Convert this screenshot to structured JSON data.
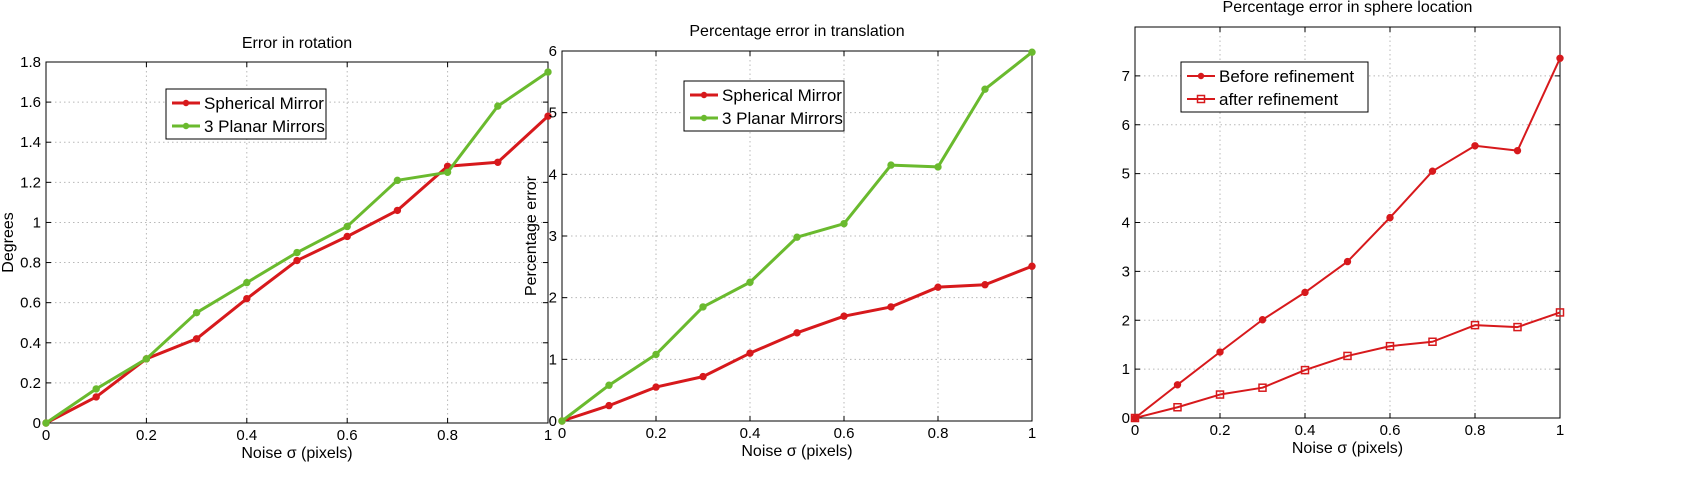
{
  "chart_data": [
    {
      "type": "line",
      "title": "Error in rotation",
      "xlabel": "Noise σ (pixels)",
      "ylabel": "Degrees",
      "xlim": [
        0,
        1
      ],
      "ylim": [
        0,
        1.8
      ],
      "xticks": [
        0,
        0.2,
        0.4,
        0.6,
        0.8,
        1
      ],
      "xtick_labels": [
        "0",
        "0.2",
        "0.4",
        "0.6",
        "0.8",
        "1"
      ],
      "yticks": [
        0,
        0.2,
        0.4,
        0.6,
        0.8,
        1,
        1.2,
        1.4,
        1.6,
        1.8
      ],
      "ytick_labels": [
        "0",
        "0.2",
        "0.4",
        "0.6",
        "0.8",
        "1",
        "1.2",
        "1.4",
        "1.6",
        "1.8"
      ],
      "grid": true,
      "legend_position": "top-center",
      "x": [
        0,
        0.1,
        0.2,
        0.3,
        0.4,
        0.5,
        0.6,
        0.7,
        0.8,
        0.9,
        1
      ],
      "series": [
        {
          "name": "Spherical Mirror",
          "color": "#d7191c",
          "marker": "circle",
          "values": [
            0,
            0.13,
            0.32,
            0.42,
            0.62,
            0.81,
            0.93,
            1.06,
            1.28,
            1.3,
            1.53
          ]
        },
        {
          "name": "3 Planar Mirrors",
          "color": "#6aba2e",
          "marker": "circle",
          "values": [
            0,
            0.17,
            0.32,
            0.55,
            0.7,
            0.85,
            0.98,
            1.21,
            1.25,
            1.58,
            1.75
          ]
        }
      ]
    },
    {
      "type": "line",
      "title": "Percentage error in translation",
      "xlabel": "Noise σ (pixels)",
      "ylabel": "Percentage error",
      "xlim": [
        0,
        1
      ],
      "ylim": [
        0,
        6
      ],
      "xticks": [
        0,
        0.2,
        0.4,
        0.6,
        0.8,
        1
      ],
      "xtick_labels": [
        "0",
        "0.2",
        "0.4",
        "0.6",
        "0.8",
        "1"
      ],
      "yticks": [
        0,
        1,
        2,
        3,
        4,
        5,
        6
      ],
      "ytick_labels": [
        "0",
        "1",
        "2",
        "3",
        "4",
        "5",
        "6"
      ],
      "grid": true,
      "legend_position": "top-left",
      "x": [
        0,
        0.1,
        0.2,
        0.3,
        0.4,
        0.5,
        0.6,
        0.7,
        0.8,
        0.9,
        1
      ],
      "series": [
        {
          "name": "Spherical Mirror",
          "color": "#d7191c",
          "marker": "circle",
          "values": [
            0,
            0.25,
            0.55,
            0.72,
            1.1,
            1.43,
            1.7,
            1.85,
            2.17,
            2.21,
            2.51
          ]
        },
        {
          "name": "3 Planar Mirrors",
          "color": "#6aba2e",
          "marker": "circle",
          "values": [
            0,
            0.58,
            1.08,
            1.85,
            2.25,
            2.98,
            3.2,
            4.15,
            4.12,
            5.38,
            5.98
          ]
        }
      ]
    },
    {
      "type": "line",
      "title": "Percentage error in sphere location",
      "xlabel": "Noise σ (pixels)",
      "ylabel": "",
      "xlim": [
        0,
        1
      ],
      "ylim": [
        0,
        8
      ],
      "xticks": [
        0,
        0.2,
        0.4,
        0.6,
        0.8,
        1
      ],
      "xtick_labels": [
        "0",
        "0.2",
        "0.4",
        "0.6",
        "0.8",
        "1"
      ],
      "yticks": [
        0,
        1,
        2,
        3,
        4,
        5,
        6,
        7
      ],
      "ytick_labels": [
        "0",
        "1",
        "2",
        "3",
        "4",
        "5",
        "6",
        "7"
      ],
      "grid": true,
      "legend_position": "top-left",
      "x": [
        0,
        0.1,
        0.2,
        0.3,
        0.4,
        0.5,
        0.6,
        0.7,
        0.8,
        0.9,
        1
      ],
      "series": [
        {
          "name": "Before refinement",
          "color": "#d7191c",
          "marker": "circle",
          "values": [
            0,
            0.68,
            1.35,
            2.01,
            2.57,
            3.2,
            4.1,
            5.05,
            5.57,
            5.47,
            7.36
          ]
        },
        {
          "name": "after refinement",
          "color": "#d7191c",
          "marker": "square",
          "values": [
            0,
            0.22,
            0.48,
            0.62,
            0.98,
            1.27,
            1.47,
            1.56,
            1.9,
            1.86,
            2.16
          ]
        }
      ]
    }
  ]
}
